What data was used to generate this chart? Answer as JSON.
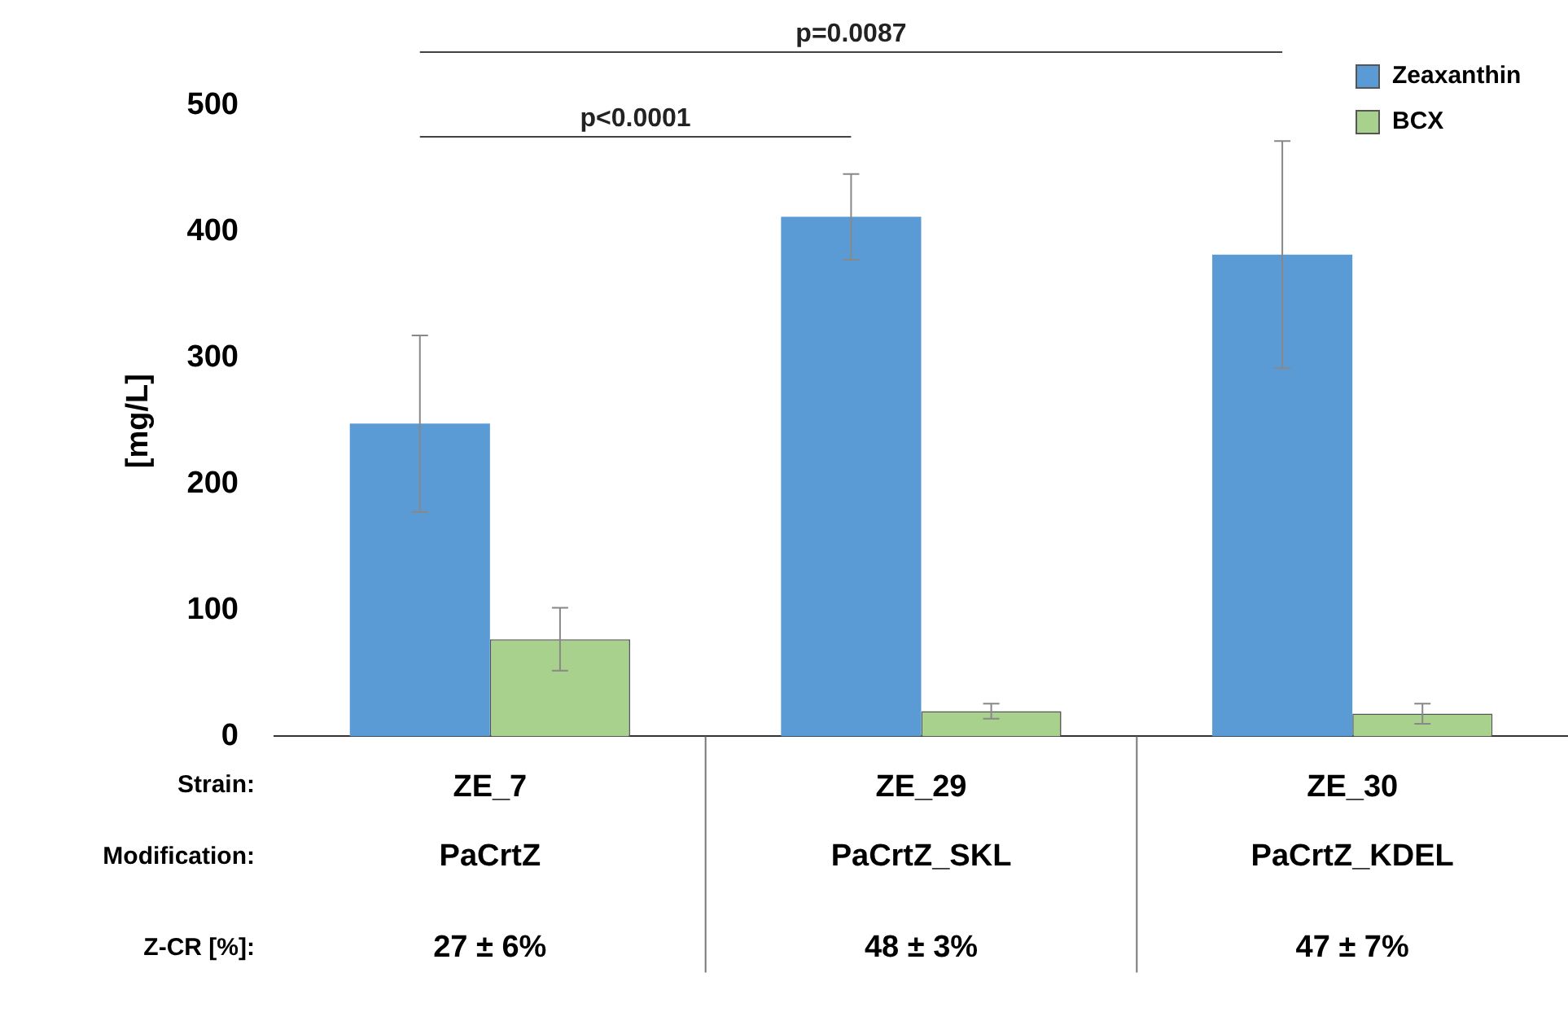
{
  "chart_data": {
    "type": "bar",
    "ylabel": "[mg/L]",
    "categories": [
      "ZE_7",
      "ZE_29",
      "ZE_30"
    ],
    "series": [
      {
        "name": "Zeaxanthin",
        "color": "#5b9bd5",
        "values": [
          248,
          412,
          382
        ],
        "errors": [
          70,
          34,
          90
        ]
      },
      {
        "name": "BCX",
        "color": "#a9d18e",
        "values": [
          77,
          20,
          18
        ],
        "errors": [
          25,
          6,
          8
        ]
      }
    ],
    "ylim": [
      0,
      500
    ],
    "yticks": [
      0,
      100,
      200,
      300,
      400,
      500
    ],
    "grid": false,
    "legend": "top right",
    "annotations": [
      "Strain:",
      "Modification:",
      "Z-CR [%]:",
      "PaCrtZ",
      "27 ± 6%",
      "PaCrtZ_SKL",
      "48 ± 3%",
      "PaCrtZ_KDEL",
      "47 ± 7%",
      "p<0.0001",
      "p=0.0087"
    ]
  }
}
